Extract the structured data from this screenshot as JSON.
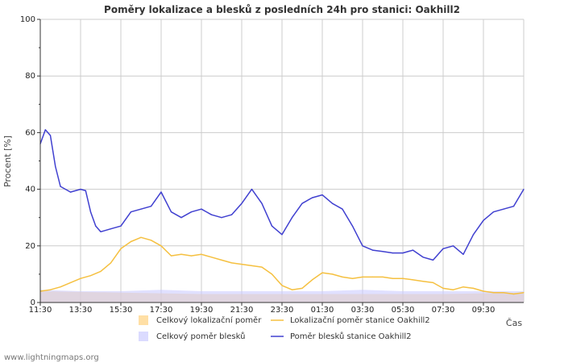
{
  "chart_data": {
    "type": "line",
    "title": "Poměry lokalizace a blesků z posledních 24h pro stanici: Oakhill2",
    "xlabel": "Čas",
    "ylabel": "Procent   [%]",
    "ylim": [
      0,
      100
    ],
    "yticks": [
      0,
      20,
      40,
      60,
      80,
      100
    ],
    "grid": true,
    "x_tick_labels": [
      "11:30",
      "13:30",
      "15:30",
      "17:30",
      "19:30",
      "21:30",
      "23:30",
      "01:30",
      "03:30",
      "05:30",
      "07:30",
      "09:30"
    ],
    "x_ticks_hours": [
      0,
      2,
      4,
      6,
      8,
      10,
      12,
      14,
      16,
      18,
      20,
      22
    ],
    "x_range_hours": [
      0,
      24
    ],
    "legend_position": "bottom",
    "series": [
      {
        "name": "Celkový lokalizační poměr",
        "kind": "area",
        "color": "#ffd27f",
        "x": [
          0,
          4,
          8,
          12,
          16,
          20,
          24
        ],
        "values": [
          4,
          3.5,
          3,
          3,
          3,
          3,
          3.5
        ]
      },
      {
        "name": "Celkový poměr blesků",
        "kind": "area",
        "color": "#ccccff",
        "x": [
          0,
          2,
          4,
          6,
          8,
          10,
          12,
          14,
          16,
          18,
          20,
          22,
          24
        ],
        "values": [
          4.5,
          4,
          4,
          4.5,
          4,
          4,
          4,
          4,
          4.5,
          4,
          4,
          4,
          4
        ]
      },
      {
        "name": "Lokalizační poměr stanice Oakhill2",
        "kind": "line",
        "color": "#f5c040",
        "x": [
          0,
          0.5,
          1,
          1.5,
          2,
          2.5,
          3,
          3.5,
          4,
          4.5,
          5,
          5.5,
          6,
          6.5,
          7,
          7.5,
          8,
          8.5,
          9,
          9.5,
          10,
          10.5,
          11,
          11.5,
          12,
          12.5,
          13,
          13.5,
          14,
          14.5,
          15,
          15.5,
          16,
          16.5,
          17,
          17.5,
          18,
          18.5,
          19,
          19.5,
          20,
          20.5,
          21,
          21.5,
          22,
          22.5,
          23,
          23.5,
          24
        ],
        "values": [
          4,
          4.5,
          5.5,
          7,
          8.5,
          9.5,
          11,
          14,
          19,
          21.5,
          23,
          22,
          20,
          16.5,
          17,
          16.5,
          17,
          16,
          15,
          14,
          13.5,
          13,
          12.5,
          10,
          6,
          4.5,
          5,
          8,
          10.5,
          10,
          9,
          8.5,
          9,
          9,
          9,
          8.5,
          8.5,
          8,
          7.5,
          7,
          5,
          4.5,
          5.5,
          5,
          4,
          3.5,
          3.5,
          3,
          3.5
        ]
      },
      {
        "name": "Poměr blesků stanice Oakhill2",
        "kind": "line",
        "color": "#4040d0",
        "x": [
          0,
          0.25,
          0.5,
          0.75,
          1,
          1.5,
          2,
          2.25,
          2.5,
          2.75,
          3,
          3.5,
          4,
          4.5,
          5,
          5.5,
          6,
          6.5,
          7,
          7.5,
          8,
          8.5,
          9,
          9.5,
          10,
          10.5,
          11,
          11.5,
          12,
          12.5,
          13,
          13.5,
          14,
          14.5,
          15,
          15.5,
          16,
          16.5,
          17,
          17.5,
          18,
          18.5,
          19,
          19.5,
          20,
          20.5,
          21,
          21.5,
          22,
          22.5,
          23,
          23.5,
          24
        ],
        "values": [
          56,
          61,
          59,
          48,
          41,
          39,
          40,
          39.5,
          32,
          27,
          25,
          26,
          27,
          32,
          33,
          34,
          39,
          32,
          30,
          32,
          33,
          31,
          30,
          31,
          35,
          40,
          35,
          27,
          24,
          30,
          35,
          37,
          38,
          35,
          33,
          27,
          20,
          18.5,
          18,
          17.5,
          17.5,
          18.5,
          16,
          15,
          19,
          20,
          17,
          24,
          29,
          32,
          33,
          34,
          40
        ]
      }
    ]
  },
  "credit": "www.lightningmaps.org"
}
